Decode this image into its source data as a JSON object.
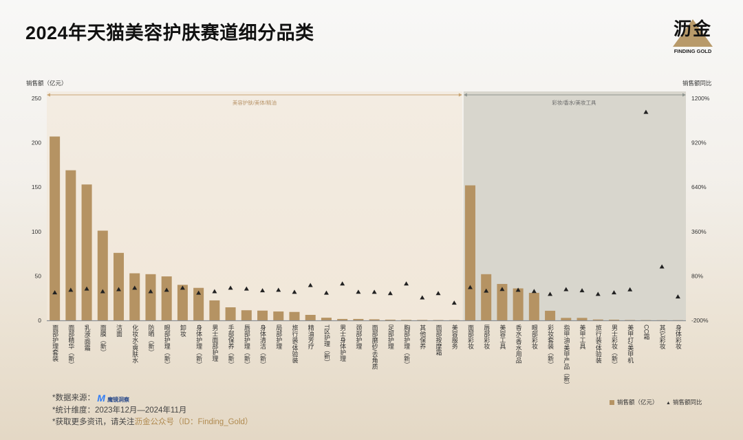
{
  "title": "2024年天猫美容护肤赛道细分品类",
  "logo": {
    "cn": "沥金",
    "en": "FINDING GOLD"
  },
  "footer": {
    "source_label": "*数据来源：",
    "source_logo": "魔镜洞察",
    "period": "*统计维度：2023年12月—2024年11月",
    "more_prefix": "*获取更多资讯，请关注",
    "more_highlight": "沥金公众号（ID：Finding_Gold）"
  },
  "colors": {
    "bar": "#b59363",
    "marker": "#222222",
    "left_region": "#f1e7d9",
    "right_region": "#d8d6cd"
  },
  "chart_data": {
    "type": "bar",
    "title": "2024年天猫美容护肤赛道细分品类",
    "ylabel": "销售额（亿元）",
    "y2label": "销售额同比",
    "ylim": [
      0,
      250
    ],
    "yticks": [
      0,
      50,
      100,
      150,
      200,
      250
    ],
    "y2lim": [
      -200,
      1200
    ],
    "y2ticks": [
      "-200%",
      "80%",
      "360%",
      "640%",
      "920%",
      "1200%"
    ],
    "y2tick_values": [
      -200,
      80,
      360,
      640,
      920,
      1200
    ],
    "regions": [
      {
        "label": "美容护肤/美体/精油",
        "count": 26
      },
      {
        "label": "彩妆/香水/美妆工具",
        "count": 14
      }
    ],
    "legend": [
      {
        "name": "销售额（亿元）",
        "marker": "square"
      },
      {
        "name": "销售额同比",
        "marker": "triangle"
      }
    ],
    "legend_position": "bottom-right",
    "categories": [
      "面部护理套装",
      "面部精华（新）",
      "乳液/面霜",
      "面膜（新）",
      "洁面",
      "化妆水/爽肤水",
      "防晒（新）",
      "眼部护理（新）",
      "卸妆",
      "身体护理（新）",
      "男士面部护理",
      "手部保养（新）",
      "唇部护理（新）",
      "身体清洁（新）",
      "局部护理",
      "旅行装/体验装",
      "精油芳疗",
      "T区护理（新）",
      "男士身体护理",
      "颈部护理",
      "面部磨砂/去角质",
      "足部护理",
      "胸部护理（新）",
      "其他保养",
      "面部按摩霜",
      "美容服务",
      "面部彩妆",
      "唇部彩妆",
      "美容工具",
      "香水/香水用品",
      "眼部彩妆",
      "彩妆套装（新）",
      "指甲油/美甲产品（新）",
      "美甲工具",
      "旅行装/体验装",
      "男士彩妆（新）",
      "美甲灯/美甲机",
      "CC霜",
      "其它彩妆",
      "身体彩妆"
    ],
    "series": [
      {
        "name": "销售额（亿元）",
        "type": "bar",
        "values": [
          207,
          169,
          153,
          101,
          76,
          53,
          52,
          49.5,
          40,
          36.6,
          22.5,
          14.7,
          11.4,
          11,
          10,
          9.5,
          6.2,
          3,
          1.6,
          1.6,
          1.2,
          0.8,
          0.6,
          0.5,
          0.4,
          0.3,
          152,
          52,
          41,
          36,
          31,
          10.8,
          2.8,
          2.8,
          1,
          0.8,
          0.4,
          0.3,
          0.2,
          0.2
        ]
      },
      {
        "name": "销售额同比",
        "type": "scatter",
        "unit": "%",
        "values": [
          -25,
          -9,
          -1,
          -18,
          -5,
          4,
          -18,
          -9,
          4,
          -27,
          -18,
          4,
          -1,
          -12,
          -9,
          -22,
          21,
          -27,
          31,
          -21,
          -22,
          -30,
          31,
          -57,
          -30,
          -90,
          8,
          -14,
          -4,
          -9,
          -17,
          -35,
          -5,
          -12,
          -35,
          -25,
          -6,
          1113,
          138,
          -51
        ]
      }
    ]
  }
}
